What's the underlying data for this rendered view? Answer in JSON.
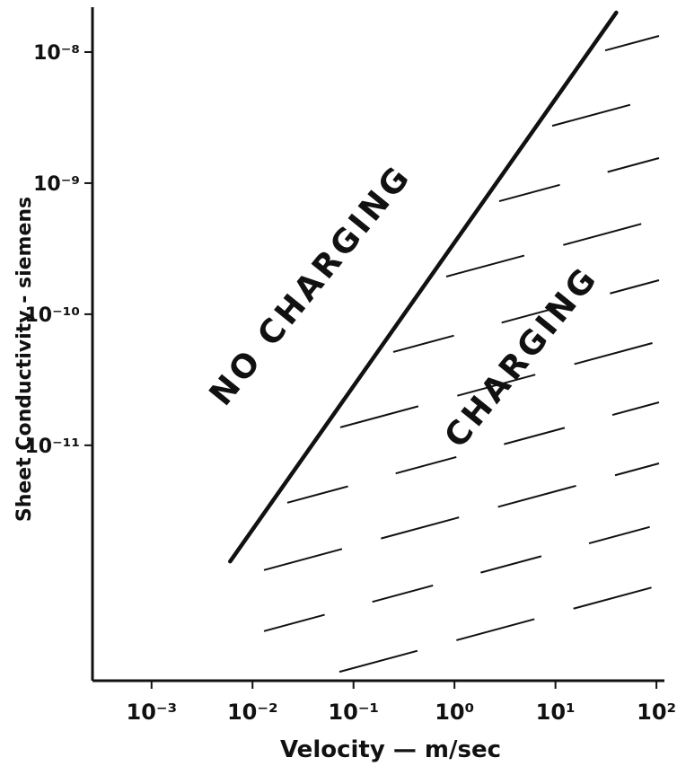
{
  "chart_data": {
    "type": "line",
    "title": "",
    "xlabel": "Velocity — m/sec",
    "ylabel": "Sheet Conductivity - siemens",
    "x_scale": "log",
    "y_scale": "log",
    "xlim": [
      0.00026,
      120
    ],
    "ylim": [
      1.6e-13,
      2.2e-08
    ],
    "grid": false,
    "legend": "none",
    "x_ticks": [
      {
        "value": 0.001,
        "label": "10⁻³"
      },
      {
        "value": 0.01,
        "label": "10⁻²"
      },
      {
        "value": 0.1,
        "label": "10⁻¹"
      },
      {
        "value": 1,
        "label": "10⁰"
      },
      {
        "value": 10,
        "label": "10¹"
      },
      {
        "value": 100,
        "label": "10²"
      }
    ],
    "y_ticks": [
      {
        "value": 1e-08,
        "label": "10⁻⁸"
      },
      {
        "value": 1e-09,
        "label": "10⁻⁹"
      },
      {
        "value": 1e-10,
        "label": "10⁻¹⁰"
      },
      {
        "value": 1e-11,
        "label": "10⁻¹¹"
      }
    ],
    "series": [
      {
        "x": [
          0.006,
          40
        ],
        "y": [
          1.3e-12,
          2e-08
        ]
      }
    ],
    "regions": [
      {
        "label": "NO CHARGING",
        "side": "above-left of boundary"
      },
      {
        "label": "CHARGING",
        "side": "below-right of boundary",
        "fill": "diagonal hatching"
      }
    ]
  },
  "colors": {
    "ink": "#111111",
    "background": "#ffffff"
  }
}
